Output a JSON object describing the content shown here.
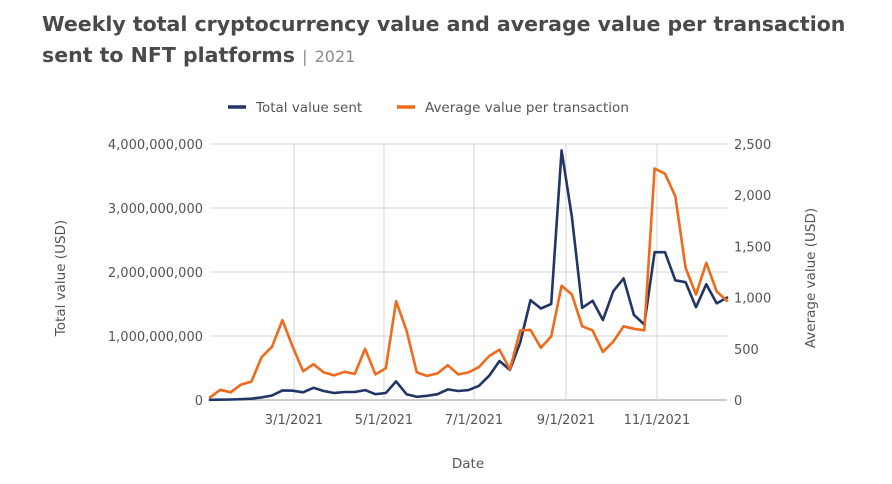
{
  "chart_data": {
    "type": "line",
    "title_main": "Weekly total cryptocurrency value and average value per transaction sent to NFT platforms",
    "title_separator": "|",
    "title_year": "2021",
    "xlabel": "Date",
    "ylabel_left": "Total value (USD)",
    "ylabel_right": "Average value (USD)",
    "ylim_left": [
      0,
      4000000000
    ],
    "ylim_right": [
      0,
      2500
    ],
    "yticks_left": [
      "4,000,000,000",
      "3,000,000,000",
      "2,000,000,000",
      "1,000,000,000",
      "0"
    ],
    "yticks_right": [
      "2,500",
      "2,000",
      "1,500",
      "1,000",
      "500",
      "0"
    ],
    "xticks": [
      "3/1/2021",
      "5/1/2021",
      "7/1/2021",
      "9/1/2021",
      "11/1/2021"
    ],
    "legend": [
      "Total value sent",
      "Average value per transaction"
    ],
    "series": [
      {
        "name": "Total value sent",
        "axis": "left",
        "color": "#233567",
        "values": [
          3000000,
          5000000,
          8000000,
          12000000,
          20000000,
          40000000,
          70000000,
          150000000,
          145000000,
          120000000,
          190000000,
          140000000,
          110000000,
          125000000,
          125000000,
          155000000,
          90000000,
          110000000,
          290000000,
          90000000,
          50000000,
          65000000,
          90000000,
          165000000,
          140000000,
          155000000,
          220000000,
          380000000,
          610000000,
          470000000,
          900000000,
          1560000000,
          1430000000,
          1500000000,
          3900000000,
          2860000000,
          1440000000,
          1550000000,
          1250000000,
          1700000000,
          1900000000,
          1330000000,
          1180000000,
          2310000000,
          2310000000,
          1870000000,
          1840000000,
          1450000000,
          1810000000,
          1510000000,
          1600000000
        ]
      },
      {
        "name": "Average value per transaction",
        "axis": "right",
        "color": "#ef6a1a",
        "values": [
          25,
          100,
          75,
          150,
          180,
          420,
          520,
          780,
          520,
          280,
          350,
          270,
          240,
          275,
          255,
          500,
          250,
          310,
          965,
          680,
          270,
          235,
          260,
          340,
          250,
          270,
          320,
          430,
          490,
          300,
          680,
          685,
          510,
          620,
          1115,
          1030,
          720,
          680,
          470,
          570,
          720,
          695,
          680,
          2260,
          2210,
          1990,
          1290,
          1030,
          1340,
          1060,
          970
        ]
      }
    ]
  }
}
